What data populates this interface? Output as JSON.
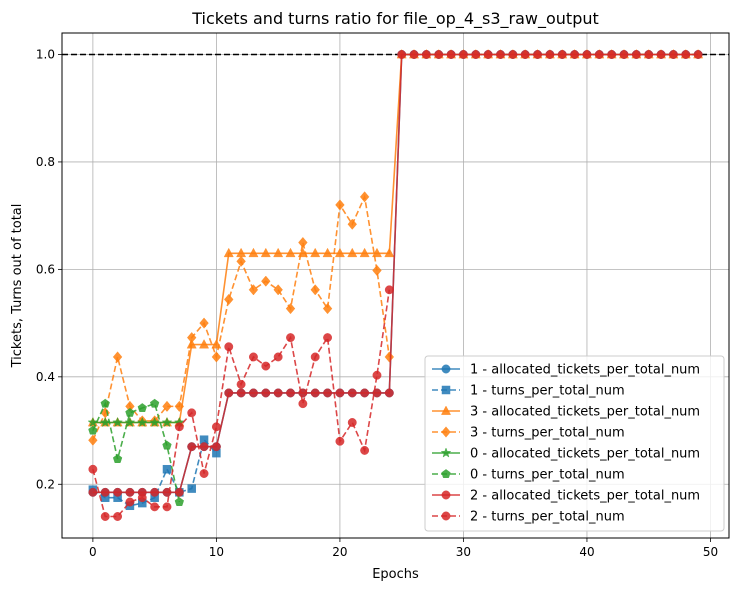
{
  "chart_data": {
    "type": "line",
    "title": "Tickets and turns ratio for file_op_4_s3_raw_output",
    "xlabel": "Epochs",
    "ylabel": "Tickets, Turns out of total",
    "xlim": [
      -2.5,
      51.5
    ],
    "ylim": [
      0.1,
      1.04
    ],
    "x_ticks": [
      0,
      10,
      20,
      30,
      40,
      50
    ],
    "y_ticks": [
      0.2,
      0.4,
      0.6,
      0.8,
      1.0
    ],
    "x_tick_labels": [
      "0",
      "10",
      "20",
      "30",
      "40",
      "50"
    ],
    "y_tick_labels": [
      "0.2",
      "0.4",
      "0.6",
      "0.8",
      "1.0"
    ],
    "grid": true,
    "legend_position": "lower-right",
    "reference_line": {
      "y": 1.0,
      "style": "dashed",
      "color": "#000000"
    },
    "series": [
      {
        "name": "1 - allocated_tickets_per_total_num",
        "color": "#1f77b4",
        "style": "solid",
        "marker": "circle",
        "x": [
          0,
          1,
          2,
          3,
          4,
          5,
          6,
          7,
          8,
          9,
          10,
          11,
          12,
          13,
          14,
          15,
          16,
          17,
          18,
          19,
          20,
          21,
          22,
          23,
          24,
          25,
          26,
          27,
          28,
          29,
          30,
          31,
          32,
          33,
          34,
          35,
          36,
          37,
          38,
          39,
          40,
          41,
          42,
          43,
          44,
          45,
          46,
          47,
          48,
          49
        ],
        "y": [
          0.185,
          0.185,
          0.185,
          0.185,
          0.185,
          0.185,
          0.185,
          0.185,
          0.27,
          0.27,
          0.27,
          0.37,
          0.37,
          0.37,
          0.37,
          0.37,
          0.37,
          0.37,
          0.37,
          0.37,
          0.37,
          0.37,
          0.37,
          0.37,
          0.37,
          1,
          1,
          1,
          1,
          1,
          1,
          1,
          1,
          1,
          1,
          1,
          1,
          1,
          1,
          1,
          1,
          1,
          1,
          1,
          1,
          1,
          1,
          1,
          1,
          1
        ]
      },
      {
        "name": "1 - turns_per_total_num",
        "color": "#1f77b4",
        "style": "dashed",
        "marker": "square",
        "x": [
          0,
          1,
          2,
          3,
          4,
          5,
          6,
          7,
          8,
          9,
          10
        ],
        "y": [
          0.19,
          0.175,
          0.175,
          0.16,
          0.165,
          0.175,
          0.228,
          0.185,
          0.192,
          0.283,
          0.258
        ]
      },
      {
        "name": "3 - allocated_tickets_per_total_num",
        "color": "#ff7f0e",
        "style": "solid",
        "marker": "triangle",
        "x": [
          0,
          1,
          2,
          3,
          4,
          5,
          6,
          7,
          8,
          9,
          10,
          11,
          12,
          13,
          14,
          15,
          16,
          17,
          18,
          19,
          20,
          21,
          22,
          23,
          24,
          25,
          26,
          27,
          28,
          29,
          30,
          31,
          32,
          33,
          34,
          35,
          36,
          37,
          38,
          39,
          40,
          41,
          42,
          43,
          44,
          45,
          46,
          47,
          48,
          49
        ],
        "y": [
          0.315,
          0.315,
          0.315,
          0.315,
          0.315,
          0.315,
          0.315,
          0.315,
          0.46,
          0.46,
          0.46,
          0.63,
          0.63,
          0.63,
          0.63,
          0.63,
          0.63,
          0.63,
          0.63,
          0.63,
          0.63,
          0.63,
          0.63,
          0.63,
          0.63,
          1,
          1,
          1,
          1,
          1,
          1,
          1,
          1,
          1,
          1,
          1,
          1,
          1,
          1,
          1,
          1,
          1,
          1,
          1,
          1,
          1,
          1,
          1,
          1,
          1
        ]
      },
      {
        "name": "3 - turns_per_total_num",
        "color": "#ff7f0e",
        "style": "dashed",
        "marker": "diamond",
        "x": [
          0,
          1,
          2,
          3,
          4,
          5,
          6,
          7,
          8,
          9,
          10,
          11,
          12,
          13,
          14,
          15,
          16,
          17,
          18,
          19,
          20,
          21,
          22,
          23,
          24
        ],
        "y": [
          0.282,
          0.333,
          0.437,
          0.345,
          0.318,
          0.318,
          0.345,
          0.345,
          0.473,
          0.5,
          0.437,
          0.544,
          0.615,
          0.562,
          0.578,
          0.562,
          0.527,
          0.65,
          0.562,
          0.527,
          0.72,
          0.684,
          0.735,
          0.598,
          0.437
        ]
      },
      {
        "name": "0 - allocated_tickets_per_total_num",
        "color": "#2ca02c",
        "style": "solid",
        "marker": "star",
        "x": [
          0,
          1,
          2,
          3,
          4,
          5,
          6,
          7
        ],
        "y": [
          0.315,
          0.315,
          0.315,
          0.315,
          0.315,
          0.315,
          0.315,
          0.315
        ]
      },
      {
        "name": "0 - turns_per_total_num",
        "color": "#2ca02c",
        "style": "dashed",
        "marker": "pentagon",
        "x": [
          0,
          1,
          2,
          3,
          4,
          5,
          6,
          7
        ],
        "y": [
          0.3,
          0.35,
          0.247,
          0.333,
          0.342,
          0.35,
          0.272,
          0.167
        ]
      },
      {
        "name": "2 - allocated_tickets_per_total_num",
        "color": "#d62728",
        "style": "solid",
        "marker": "circle",
        "x": [
          0,
          1,
          2,
          3,
          4,
          5,
          6,
          7,
          8,
          9,
          10,
          11,
          12,
          13,
          14,
          15,
          16,
          17,
          18,
          19,
          20,
          21,
          22,
          23,
          24,
          25,
          26,
          27,
          28,
          29,
          30,
          31,
          32,
          33,
          34,
          35,
          36,
          37,
          38,
          39,
          40,
          41,
          42,
          43,
          44,
          45,
          46,
          47,
          48,
          49
        ],
        "y": [
          0.185,
          0.185,
          0.185,
          0.185,
          0.185,
          0.185,
          0.185,
          0.185,
          0.27,
          0.27,
          0.27,
          0.37,
          0.37,
          0.37,
          0.37,
          0.37,
          0.37,
          0.37,
          0.37,
          0.37,
          0.37,
          0.37,
          0.37,
          0.37,
          0.37,
          1,
          1,
          1,
          1,
          1,
          1,
          1,
          1,
          1,
          1,
          1,
          1,
          1,
          1,
          1,
          1,
          1,
          1,
          1,
          1,
          1,
          1,
          1,
          1,
          1
        ]
      },
      {
        "name": "2 - turns_per_total_num",
        "color": "#d62728",
        "style": "dashed",
        "marker": "circle",
        "x": [
          0,
          1,
          2,
          3,
          4,
          5,
          6,
          7,
          8,
          9,
          10,
          11,
          12,
          13,
          14,
          15,
          16,
          17,
          18,
          19,
          20,
          21,
          22,
          23,
          24
        ],
        "y": [
          0.228,
          0.14,
          0.14,
          0.167,
          0.175,
          0.158,
          0.158,
          0.307,
          0.333,
          0.22,
          0.307,
          0.456,
          0.386,
          0.437,
          0.42,
          0.437,
          0.473,
          0.35,
          0.437,
          0.473,
          0.28,
          0.315,
          0.263,
          0.403,
          0.562
        ]
      }
    ]
  }
}
